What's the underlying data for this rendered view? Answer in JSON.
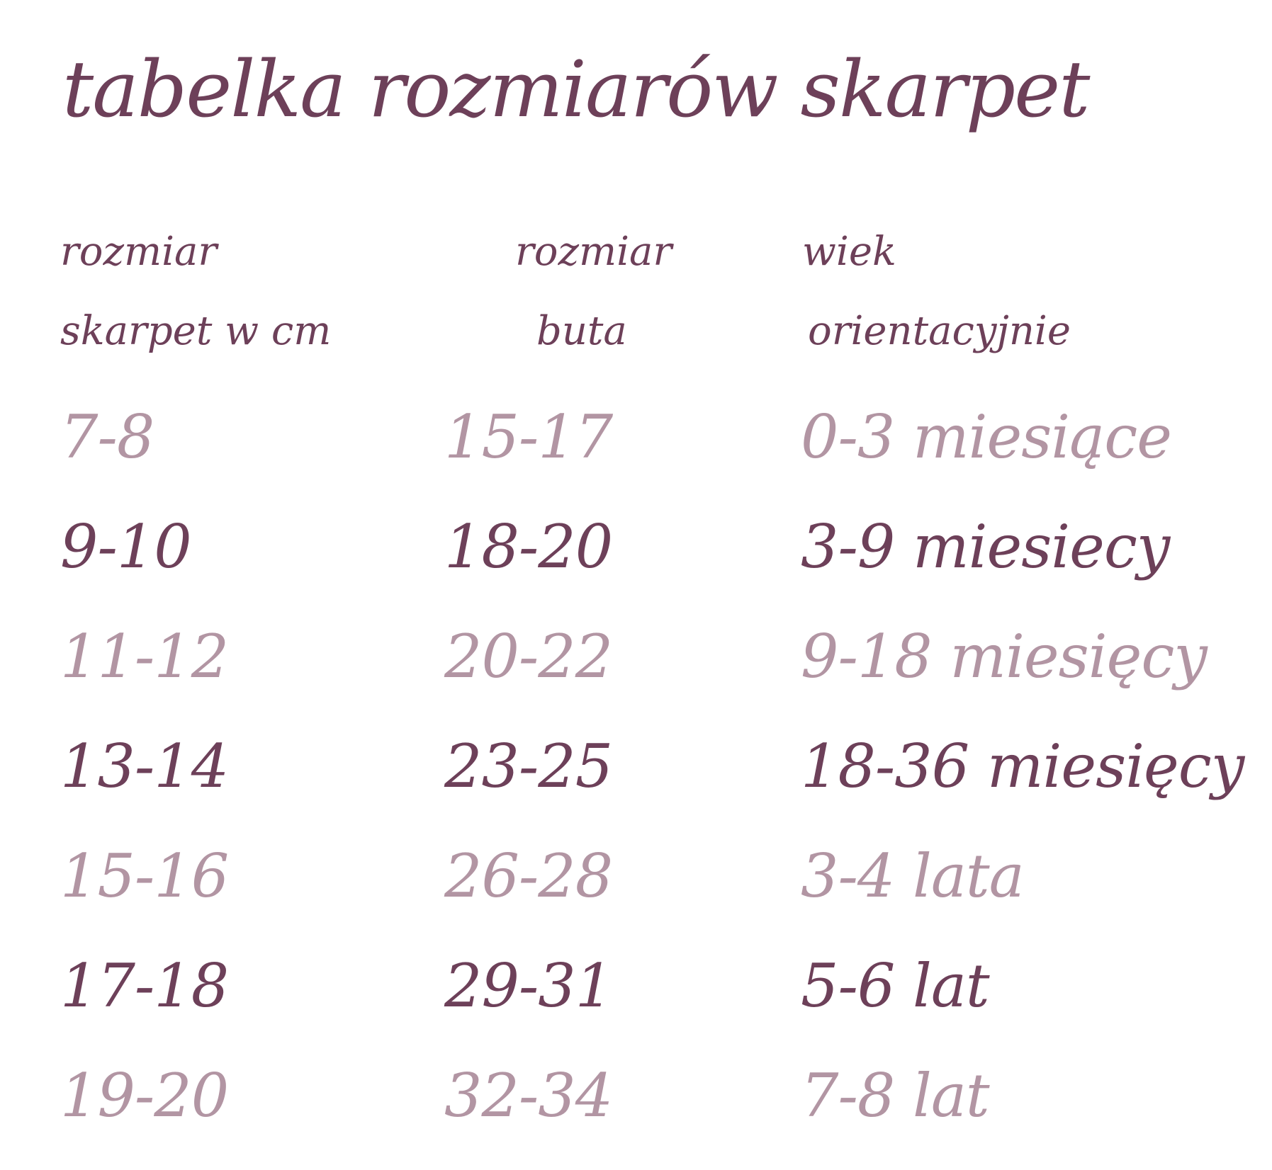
{
  "page": {
    "title": "tabelka rozmiarów skarpet",
    "colors": {
      "dark_plum": "#6d4059",
      "light_mauve": "#b295a3",
      "background": "#ffffff"
    }
  },
  "table": {
    "columns": [
      {
        "line1": "rozmiar",
        "line2": "skarpet w cm"
      },
      {
        "line1": "rozmiar",
        "line2": "buta"
      },
      {
        "line1": "wiek",
        "line2": "orientacyjnie"
      }
    ],
    "rows": [
      {
        "sock_cm": "7-8",
        "shoe": "15-17",
        "age": "0-3 miesiące",
        "tone": "light"
      },
      {
        "sock_cm": "9-10",
        "shoe": "18-20",
        "age": "3-9 miesiecy",
        "tone": "dark"
      },
      {
        "sock_cm": "11-12",
        "shoe": "20-22",
        "age": "9-18 miesięcy",
        "tone": "light"
      },
      {
        "sock_cm": "13-14",
        "shoe": "23-25",
        "age": "18-36 miesięcy",
        "tone": "dark"
      },
      {
        "sock_cm": "15-16",
        "shoe": "26-28",
        "age": "3-4 lata",
        "tone": "light"
      },
      {
        "sock_cm": "17-18",
        "shoe": "29-31",
        "age": "5-6 lat",
        "tone": "dark"
      },
      {
        "sock_cm": "19-20",
        "shoe": "32-34",
        "age": "7-8 lat",
        "tone": "light"
      }
    ]
  },
  "chart_data": {
    "type": "table",
    "title": "tabelka rozmiarów skarpet",
    "columns": [
      "rozmiar skarpet w cm",
      "rozmiar buta",
      "wiek orientacyjnie"
    ],
    "rows": [
      [
        "7-8",
        "15-17",
        "0-3 miesiące"
      ],
      [
        "9-10",
        "18-20",
        "3-9 miesiecy"
      ],
      [
        "11-12",
        "20-22",
        "9-18 miesięcy"
      ],
      [
        "13-14",
        "23-25",
        "18-36 miesięcy"
      ],
      [
        "15-16",
        "26-28",
        "3-4 lata"
      ],
      [
        "17-18",
        "29-31",
        "5-6 lat"
      ],
      [
        "19-20",
        "32-34",
        "7-8 lat"
      ]
    ],
    "layout_hints": {
      "row_color_alternation": [
        "light",
        "dark"
      ],
      "grid": false,
      "font_style": "handwritten script"
    }
  }
}
